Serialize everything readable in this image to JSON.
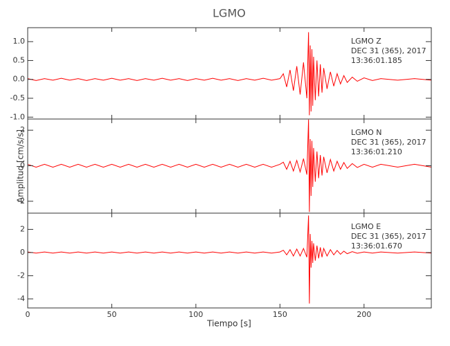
{
  "chart_data": [
    {
      "type": "line",
      "title": "LGMO",
      "color": "#ff0000",
      "annotations": [
        "LGMO  Z",
        "DEC 31 (365), 2017",
        "13:36:01.185"
      ],
      "xlim": [
        0,
        240
      ],
      "xticks": [
        0,
        50,
        100,
        150,
        200
      ],
      "ylim": [
        -1.05,
        1.37
      ],
      "yticks": [
        {
          "value": -1.0,
          "label": "-1.0"
        },
        -0.5,
        {
          "value": 0.0,
          "label": "0.0"
        },
        0.5,
        {
          "value": 1.0,
          "label": "1.0"
        }
      ],
      "x": [
        0,
        5,
        10,
        15,
        20,
        25,
        30,
        35,
        40,
        45,
        50,
        55,
        60,
        65,
        70,
        75,
        80,
        85,
        90,
        95,
        100,
        105,
        110,
        115,
        120,
        125,
        130,
        135,
        140,
        145,
        150,
        152,
        154,
        156,
        158,
        160,
        162,
        164,
        166,
        167,
        167.5,
        168,
        168.5,
        169,
        169.5,
        170,
        171,
        172,
        173,
        174,
        175,
        176,
        178,
        180,
        182,
        184,
        186,
        188,
        190,
        193,
        196,
        200,
        205,
        210,
        220,
        230,
        240
      ],
      "values": [
        0.02,
        -0.03,
        0.02,
        -0.02,
        0.03,
        -0.02,
        0.02,
        -0.03,
        0.02,
        -0.02,
        0.03,
        -0.02,
        0.02,
        -0.03,
        0.02,
        -0.02,
        0.03,
        -0.02,
        0.02,
        -0.03,
        0.02,
        -0.02,
        0.03,
        -0.02,
        0.02,
        -0.03,
        0.02,
        -0.02,
        0.03,
        -0.02,
        0.02,
        0.15,
        -0.2,
        0.25,
        -0.3,
        0.35,
        -0.4,
        0.45,
        -0.5,
        1.25,
        -0.95,
        0.9,
        -0.85,
        0.8,
        -0.7,
        0.6,
        -0.55,
        0.5,
        -0.45,
        0.4,
        -0.35,
        0.3,
        -0.25,
        0.2,
        -0.18,
        0.15,
        -0.12,
        0.1,
        -0.08,
        0.06,
        -0.05,
        0.04,
        -0.03,
        0.02,
        -0.02,
        0.02,
        -0.02
      ]
    },
    {
      "type": "line",
      "ylabel": "Amplitud [cm/s/s]",
      "color": "#ff0000",
      "annotations": [
        "LGMO  N",
        "DEC 31 (365), 2017",
        "13:36:01.210"
      ],
      "xlim": [
        0,
        240
      ],
      "xticks": [
        0,
        50,
        100,
        150,
        200
      ],
      "ylim": [
        -2.67,
        2.63
      ],
      "yticks": [
        -2,
        0,
        2
      ],
      "x": [
        0,
        5,
        10,
        15,
        20,
        25,
        30,
        35,
        40,
        45,
        50,
        55,
        60,
        65,
        70,
        75,
        80,
        85,
        90,
        95,
        100,
        105,
        110,
        115,
        120,
        125,
        130,
        135,
        140,
        145,
        150,
        152,
        154,
        156,
        158,
        160,
        162,
        164,
        166,
        167,
        167.5,
        168,
        168.5,
        169,
        169.5,
        170,
        171,
        172,
        173,
        174,
        175,
        176,
        178,
        180,
        182,
        184,
        186,
        188,
        190,
        193,
        196,
        200,
        205,
        210,
        220,
        230,
        240
      ],
      "values": [
        0.08,
        -0.08,
        0.08,
        -0.08,
        0.08,
        -0.08,
        0.08,
        -0.08,
        0.08,
        -0.08,
        0.08,
        -0.08,
        0.08,
        -0.08,
        0.08,
        -0.08,
        0.08,
        -0.08,
        0.08,
        -0.08,
        0.08,
        -0.08,
        0.08,
        -0.08,
        0.08,
        -0.08,
        0.08,
        -0.08,
        0.08,
        -0.08,
        0.08,
        0.2,
        -0.2,
        0.25,
        -0.3,
        0.3,
        -0.35,
        0.4,
        -0.5,
        2.6,
        -2.6,
        1.5,
        -1.7,
        1.4,
        -1.2,
        1.0,
        -0.9,
        0.8,
        -0.7,
        0.6,
        -0.55,
        0.5,
        -0.4,
        0.35,
        -0.3,
        0.25,
        -0.2,
        0.18,
        -0.15,
        0.12,
        -0.1,
        0.08,
        -0.08,
        0.08,
        -0.08,
        0.08,
        -0.08
      ]
    },
    {
      "type": "line",
      "xlabel": "Tiempo [s]",
      "color": "#ff0000",
      "annotations": [
        "LGMO  E",
        "DEC 31 (365), 2017",
        "13:36:01.670"
      ],
      "xlim": [
        0,
        240
      ],
      "xticks": [
        0,
        50,
        100,
        150,
        200
      ],
      "ylim": [
        -4.78,
        3.4
      ],
      "yticks": [
        -4,
        -2,
        0,
        2
      ],
      "x": [
        0,
        5,
        10,
        15,
        20,
        25,
        30,
        35,
        40,
        45,
        50,
        55,
        60,
        65,
        70,
        75,
        80,
        85,
        90,
        95,
        100,
        105,
        110,
        115,
        120,
        125,
        130,
        135,
        140,
        145,
        150,
        152,
        154,
        156,
        158,
        160,
        162,
        164,
        166,
        167,
        167.5,
        168,
        168.5,
        169,
        169.5,
        170,
        171,
        172,
        173,
        174,
        175,
        176,
        178,
        180,
        182,
        184,
        186,
        188,
        190,
        193,
        196,
        200,
        205,
        210,
        220,
        230,
        240
      ],
      "values": [
        0.05,
        -0.05,
        0.05,
        -0.05,
        0.05,
        -0.05,
        0.05,
        -0.05,
        0.05,
        -0.05,
        0.05,
        -0.05,
        0.05,
        -0.05,
        0.05,
        -0.05,
        0.05,
        -0.05,
        0.05,
        -0.05,
        0.05,
        -0.05,
        0.05,
        -0.05,
        0.05,
        -0.05,
        0.05,
        -0.05,
        0.05,
        -0.05,
        0.05,
        0.2,
        -0.2,
        0.25,
        -0.3,
        0.3,
        -0.3,
        0.35,
        -0.4,
        3.2,
        -4.4,
        1.6,
        -1.3,
        1.0,
        -0.9,
        0.8,
        -0.7,
        0.6,
        -0.5,
        0.45,
        -0.4,
        0.35,
        -0.3,
        0.25,
        -0.2,
        0.18,
        -0.15,
        0.12,
        -0.1,
        0.08,
        -0.06,
        0.05,
        -0.05,
        0.05,
        -0.05,
        0.05,
        -0.05
      ]
    }
  ]
}
